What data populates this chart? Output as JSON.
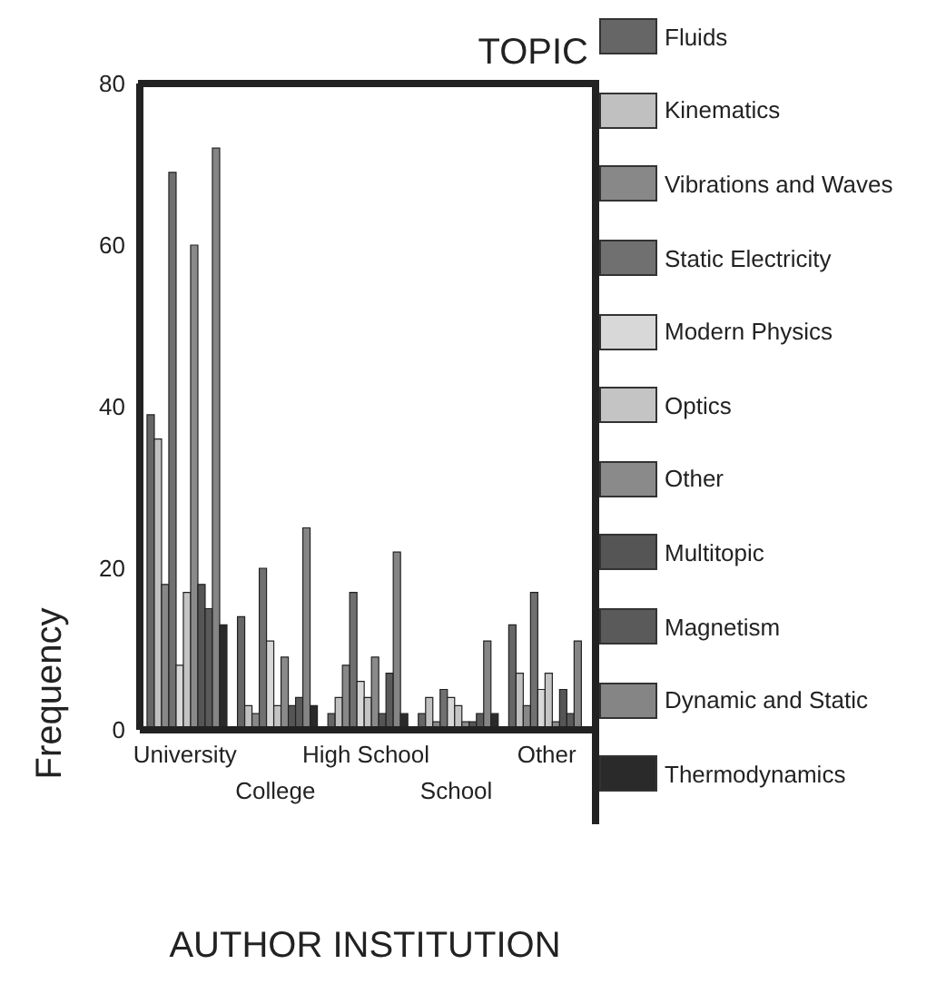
{
  "chart_data": {
    "type": "bar",
    "legend_title": "TOPIC",
    "xlabel": "AUTHOR INSTITUTION",
    "ylabel": "Frequency",
    "categories": [
      "University",
      "College",
      "High School",
      "School",
      "Other"
    ],
    "series": [
      {
        "name": "Fluids",
        "color": "#666666",
        "values": [
          39,
          14,
          2,
          2,
          13
        ]
      },
      {
        "name": "Kinematics",
        "color": "#c0c0c0",
        "values": [
          36,
          3,
          4,
          4,
          7
        ]
      },
      {
        "name": "Vibrations and Waves",
        "color": "#888888",
        "values": [
          18,
          2,
          8,
          1,
          3
        ]
      },
      {
        "name": "Static Electricity",
        "color": "#707070",
        "values": [
          69,
          20,
          17,
          5,
          17
        ]
      },
      {
        "name": "Modern Physics",
        "color": "#d8d8d8",
        "values": [
          8,
          11,
          6,
          4,
          5
        ]
      },
      {
        "name": "Optics",
        "color": "#c4c4c4",
        "values": [
          17,
          3,
          4,
          3,
          7
        ]
      },
      {
        "name": "Other",
        "color": "#8a8a8a",
        "values": [
          60,
          9,
          9,
          1,
          1
        ]
      },
      {
        "name": "Multitopic",
        "color": "#555555",
        "values": [
          18,
          3,
          2,
          1,
          5
        ]
      },
      {
        "name": "Magnetism",
        "color": "#5a5a5a",
        "values": [
          15,
          4,
          7,
          2,
          2
        ]
      },
      {
        "name": "Dynamic and Static",
        "color": "#858585",
        "values": [
          72,
          25,
          22,
          11,
          11
        ]
      },
      {
        "name": "Thermodynamics",
        "color": "#2a2a2a",
        "values": [
          13,
          3,
          2,
          2,
          0
        ]
      }
    ],
    "ylim": [
      0,
      80
    ],
    "yticks": [
      0,
      20,
      40,
      60,
      80
    ],
    "legend": "right"
  }
}
